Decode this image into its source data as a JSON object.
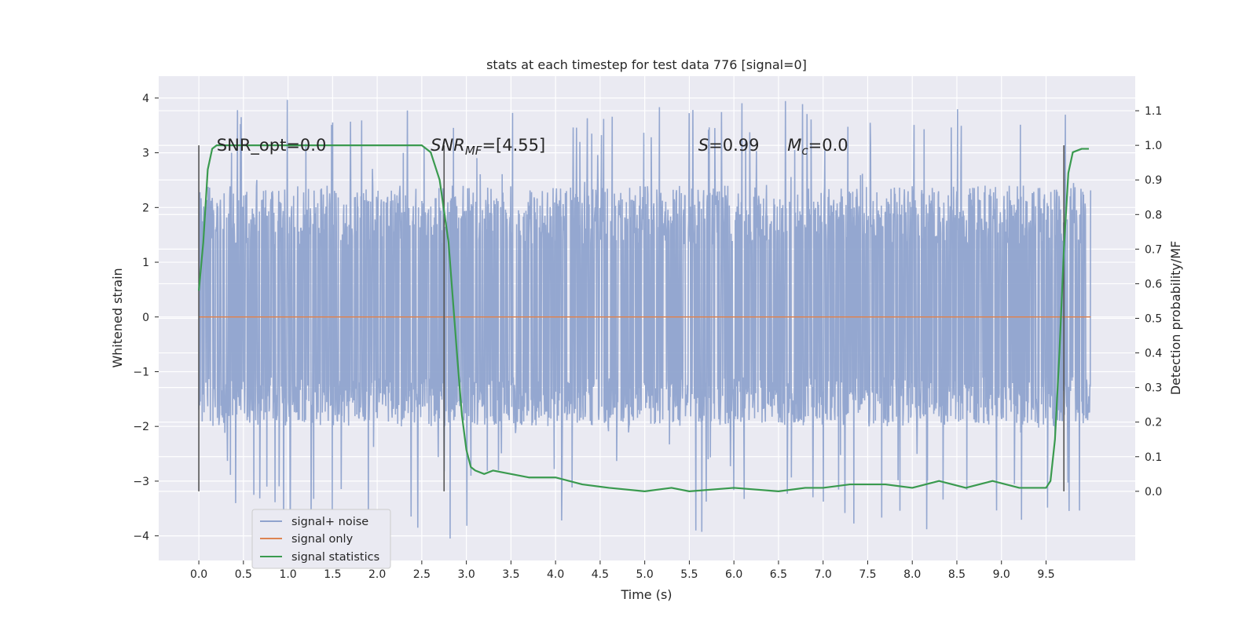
{
  "chart_data": {
    "type": "line",
    "title": "stats at each timestep for test data 776 [signal=0]",
    "xlabel": "Time (s)",
    "ylabel_left": "Whitened strain",
    "ylabel_right": "Detection probability/MF",
    "xlim": [
      -0.45,
      10.5
    ],
    "ylim_left": [
      -4.45,
      4.4
    ],
    "ylim_right": [
      -0.2,
      1.2
    ],
    "x_ticks": [
      0.0,
      0.5,
      1.0,
      1.5,
      2.0,
      2.5,
      3.0,
      3.5,
      4.0,
      4.5,
      5.0,
      5.5,
      6.0,
      6.5,
      7.0,
      7.5,
      8.0,
      8.5,
      9.0,
      9.5
    ],
    "x_tick_labels": [
      "0.0",
      "0.5",
      "1.0",
      "1.5",
      "2.0",
      "2.5",
      "3.0",
      "3.5",
      "4.0",
      "4.5",
      "5.0",
      "5.5",
      "6.0",
      "6.5",
      "7.0",
      "7.5",
      "8.0",
      "8.5",
      "9.0",
      "9.5"
    ],
    "y_ticks_left": [
      -4,
      -3,
      -2,
      -1,
      0,
      1,
      2,
      3,
      4
    ],
    "y_tick_labels_left": [
      "−4",
      "−3",
      "−2",
      "−1",
      "0",
      "1",
      "2",
      "3",
      "4"
    ],
    "y_ticks_right": [
      0.0,
      0.1,
      0.2,
      0.3,
      0.4,
      0.5,
      0.6,
      0.7,
      0.8,
      0.9,
      1.0,
      1.1
    ],
    "y_tick_labels_right": [
      "0.0",
      "0.1",
      "0.2",
      "0.3",
      "0.4",
      "0.5",
      "0.6",
      "0.7",
      "0.8",
      "0.9",
      "1.0",
      "1.1"
    ],
    "grid": true,
    "legend_position": "lower-left",
    "series": [
      {
        "name": "signal+ noise",
        "axis": "left",
        "color": "#8fa3cd",
        "x_range": [
          0.0,
          10.0
        ],
        "typical_envelope": [
          -2.0,
          2.4
        ],
        "extremes": [
          -4.05,
          4.0
        ],
        "note_style": "dense noise trace"
      },
      {
        "name": "signal only",
        "axis": "left",
        "color": "#dd8452",
        "x": [
          0.0,
          10.0
        ],
        "y": [
          0.0,
          0.0
        ]
      },
      {
        "name": "signal statistics",
        "axis": "right",
        "color": "#3a9a4f",
        "x": [
          0.0,
          0.05,
          0.1,
          0.15,
          0.2,
          0.3,
          0.5,
          1.0,
          1.5,
          2.0,
          2.3,
          2.5,
          2.6,
          2.7,
          2.8,
          2.85,
          2.9,
          2.95,
          3.0,
          3.05,
          3.1,
          3.2,
          3.3,
          3.5,
          3.7,
          4.0,
          4.3,
          4.6,
          5.0,
          5.3,
          5.5,
          6.0,
          6.5,
          6.8,
          7.0,
          7.3,
          7.7,
          8.0,
          8.3,
          8.6,
          8.9,
          9.2,
          9.5,
          9.55,
          9.6,
          9.65,
          9.7,
          9.75,
          9.8,
          9.9,
          9.98
        ],
        "y": [
          0.58,
          0.72,
          0.93,
          0.99,
          1.0,
          1.0,
          1.0,
          1.0,
          1.0,
          1.0,
          1.0,
          1.0,
          0.98,
          0.9,
          0.72,
          0.55,
          0.38,
          0.22,
          0.12,
          0.07,
          0.06,
          0.05,
          0.06,
          0.05,
          0.04,
          0.04,
          0.02,
          0.01,
          0.0,
          0.01,
          0.0,
          0.01,
          0.0,
          0.01,
          0.01,
          0.02,
          0.02,
          0.01,
          0.03,
          0.01,
          0.03,
          0.01,
          0.01,
          0.03,
          0.15,
          0.4,
          0.7,
          0.92,
          0.98,
          0.99,
          0.99
        ]
      }
    ],
    "vertical_markers": {
      "color": "#555555",
      "x": [
        0.0,
        2.75,
        9.7
      ],
      "y_range_right": [
        0.0,
        1.0
      ]
    },
    "annotations": [
      {
        "text": "SNR_opt=0.0",
        "x": 0.2,
        "y": 3.15
      },
      {
        "base": "SNR",
        "sub": "MF",
        "rest": "=[4.55]",
        "x": 2.6,
        "y": 3.15
      },
      {
        "base": "S",
        "sub": "",
        "rest": "=0.99",
        "x": 5.6,
        "y": 3.15
      },
      {
        "base": "M",
        "sub": "c",
        "rest": "=0.0",
        "x": 6.6,
        "y": 3.15
      }
    ]
  }
}
